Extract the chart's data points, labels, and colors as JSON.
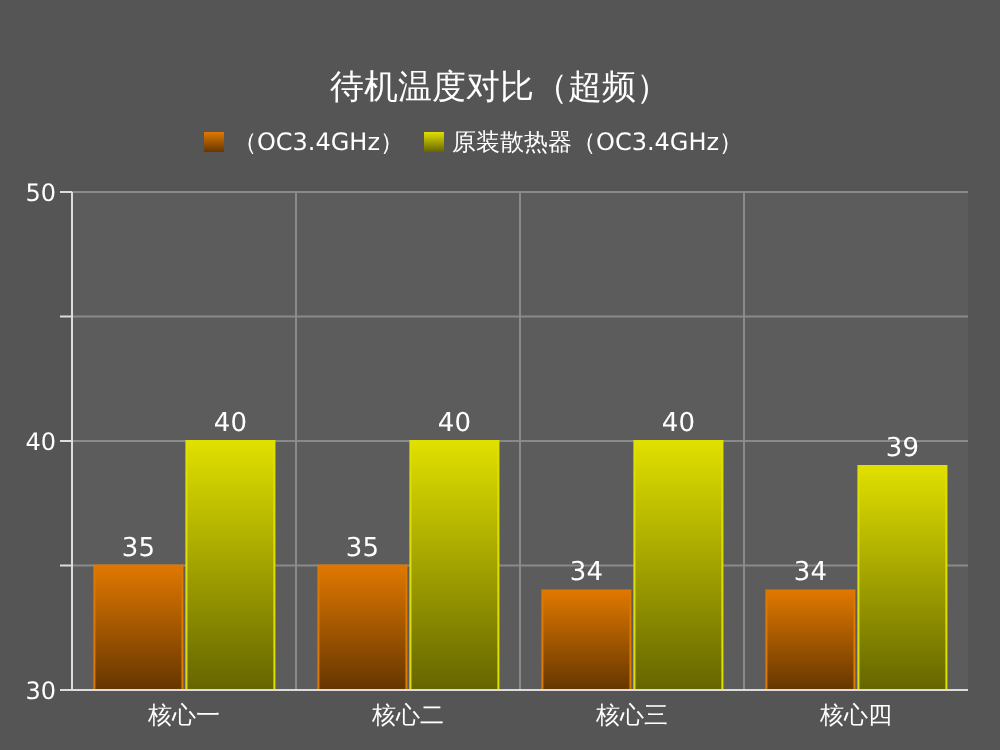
{
  "chart_data": {
    "type": "bar",
    "title": "待机温度对比（超频）",
    "categories": [
      "核心一",
      "核心二",
      "核心三",
      "核心四"
    ],
    "series": [
      {
        "name": "（OC3.4GHz）",
        "color": "#e07800",
        "values": [
          35,
          35,
          34,
          34
        ]
      },
      {
        "name": "原装散热器（OC3.4GHz）",
        "color": "#e0e000",
        "values": [
          40,
          40,
          40,
          39
        ]
      }
    ],
    "ylim": [
      30,
      50
    ],
    "yticks": [
      30,
      {
        "value": 35,
        "label": null
      },
      40,
      {
        "value": 45,
        "label": null
      },
      50
    ],
    "grid": true,
    "legend": "top",
    "data_labels": true
  }
}
